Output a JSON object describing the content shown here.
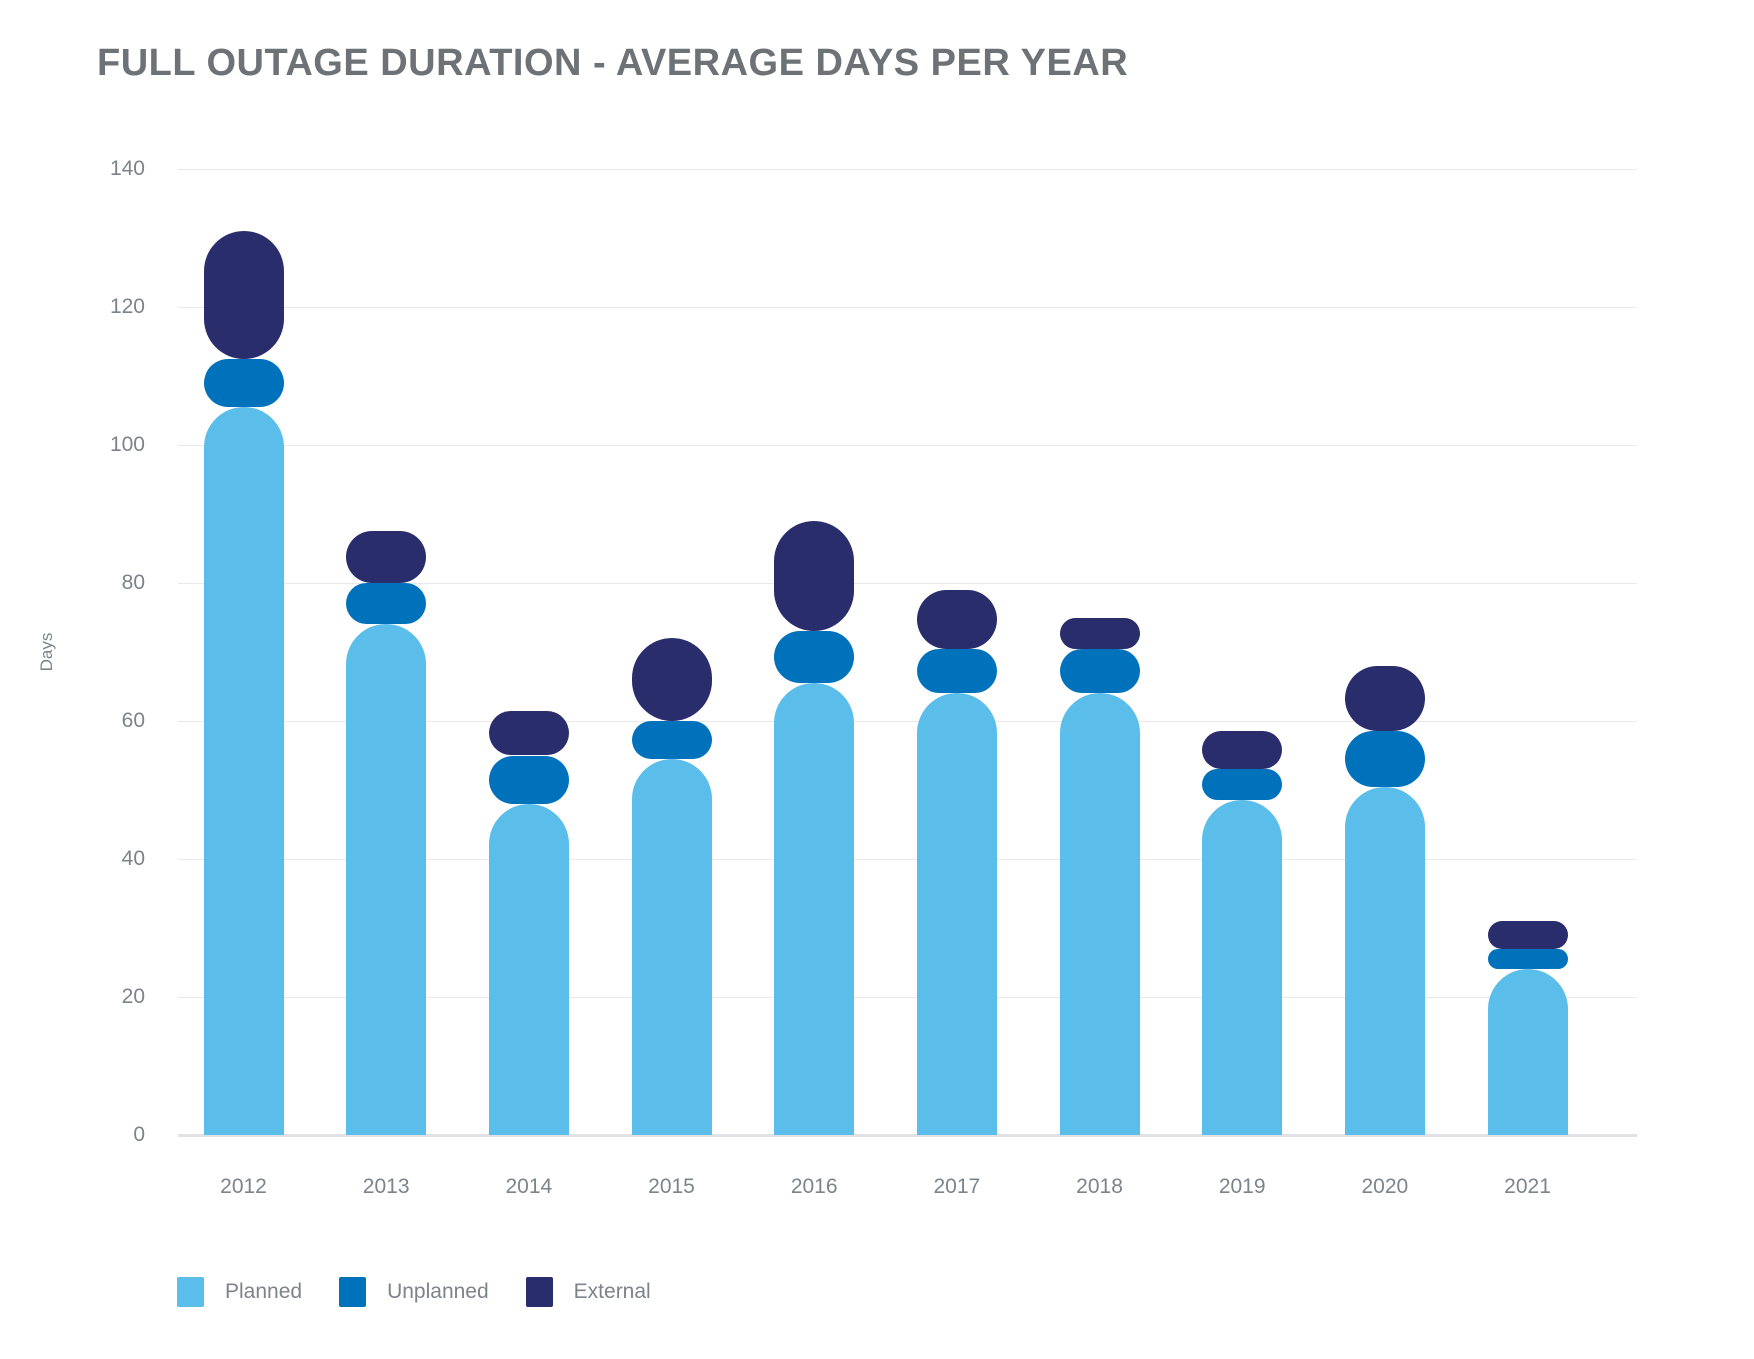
{
  "title": "FULL OUTAGE DURATION - AVERAGE DAYS PER YEAR",
  "y_axis": {
    "label": "Days",
    "tick_labels": [
      "0",
      "20",
      "40",
      "60",
      "80",
      "100",
      "120",
      "140"
    ]
  },
  "legend": {
    "items": [
      "Planned",
      "Unplanned",
      "External"
    ]
  },
  "colors": {
    "planned": "#5bbde9",
    "unplanned": "#0072bb",
    "external": "#2a2d6c",
    "gridline": "#e9e9ed",
    "axis_text": "#7d838b",
    "title_text": "#6d7277"
  },
  "chart_data": {
    "type": "bar",
    "stacked": true,
    "title": "FULL OUTAGE DURATION - AVERAGE DAYS PER YEAR",
    "xlabel": "",
    "ylabel": "Days",
    "ylim": [
      0,
      140
    ],
    "ytick_step": 20,
    "grid": true,
    "legend_position": "bottom-left",
    "categories": [
      "2012",
      "2013",
      "2014",
      "2015",
      "2016",
      "2017",
      "2018",
      "2019",
      "2020",
      "2021"
    ],
    "series": [
      {
        "name": "Planned",
        "color": "#5bbde9",
        "values": [
          105.5,
          74,
          48,
          54.5,
          65.5,
          64,
          64,
          48.5,
          50.5,
          24
        ]
      },
      {
        "name": "Unplanned",
        "color": "#0072bb",
        "values": [
          7,
          6,
          7,
          5.5,
          7.5,
          6.5,
          6.5,
          4.5,
          8,
          3
        ]
      },
      {
        "name": "External",
        "color": "#2a2d6c",
        "values": [
          18.5,
          7.5,
          6.5,
          12,
          16,
          8.5,
          4.5,
          5.5,
          9.5,
          4
        ]
      }
    ],
    "cumulative_totals": [
      131,
      87.5,
      61.5,
      72,
      89,
      79,
      75,
      58.5,
      68,
      31
    ]
  }
}
